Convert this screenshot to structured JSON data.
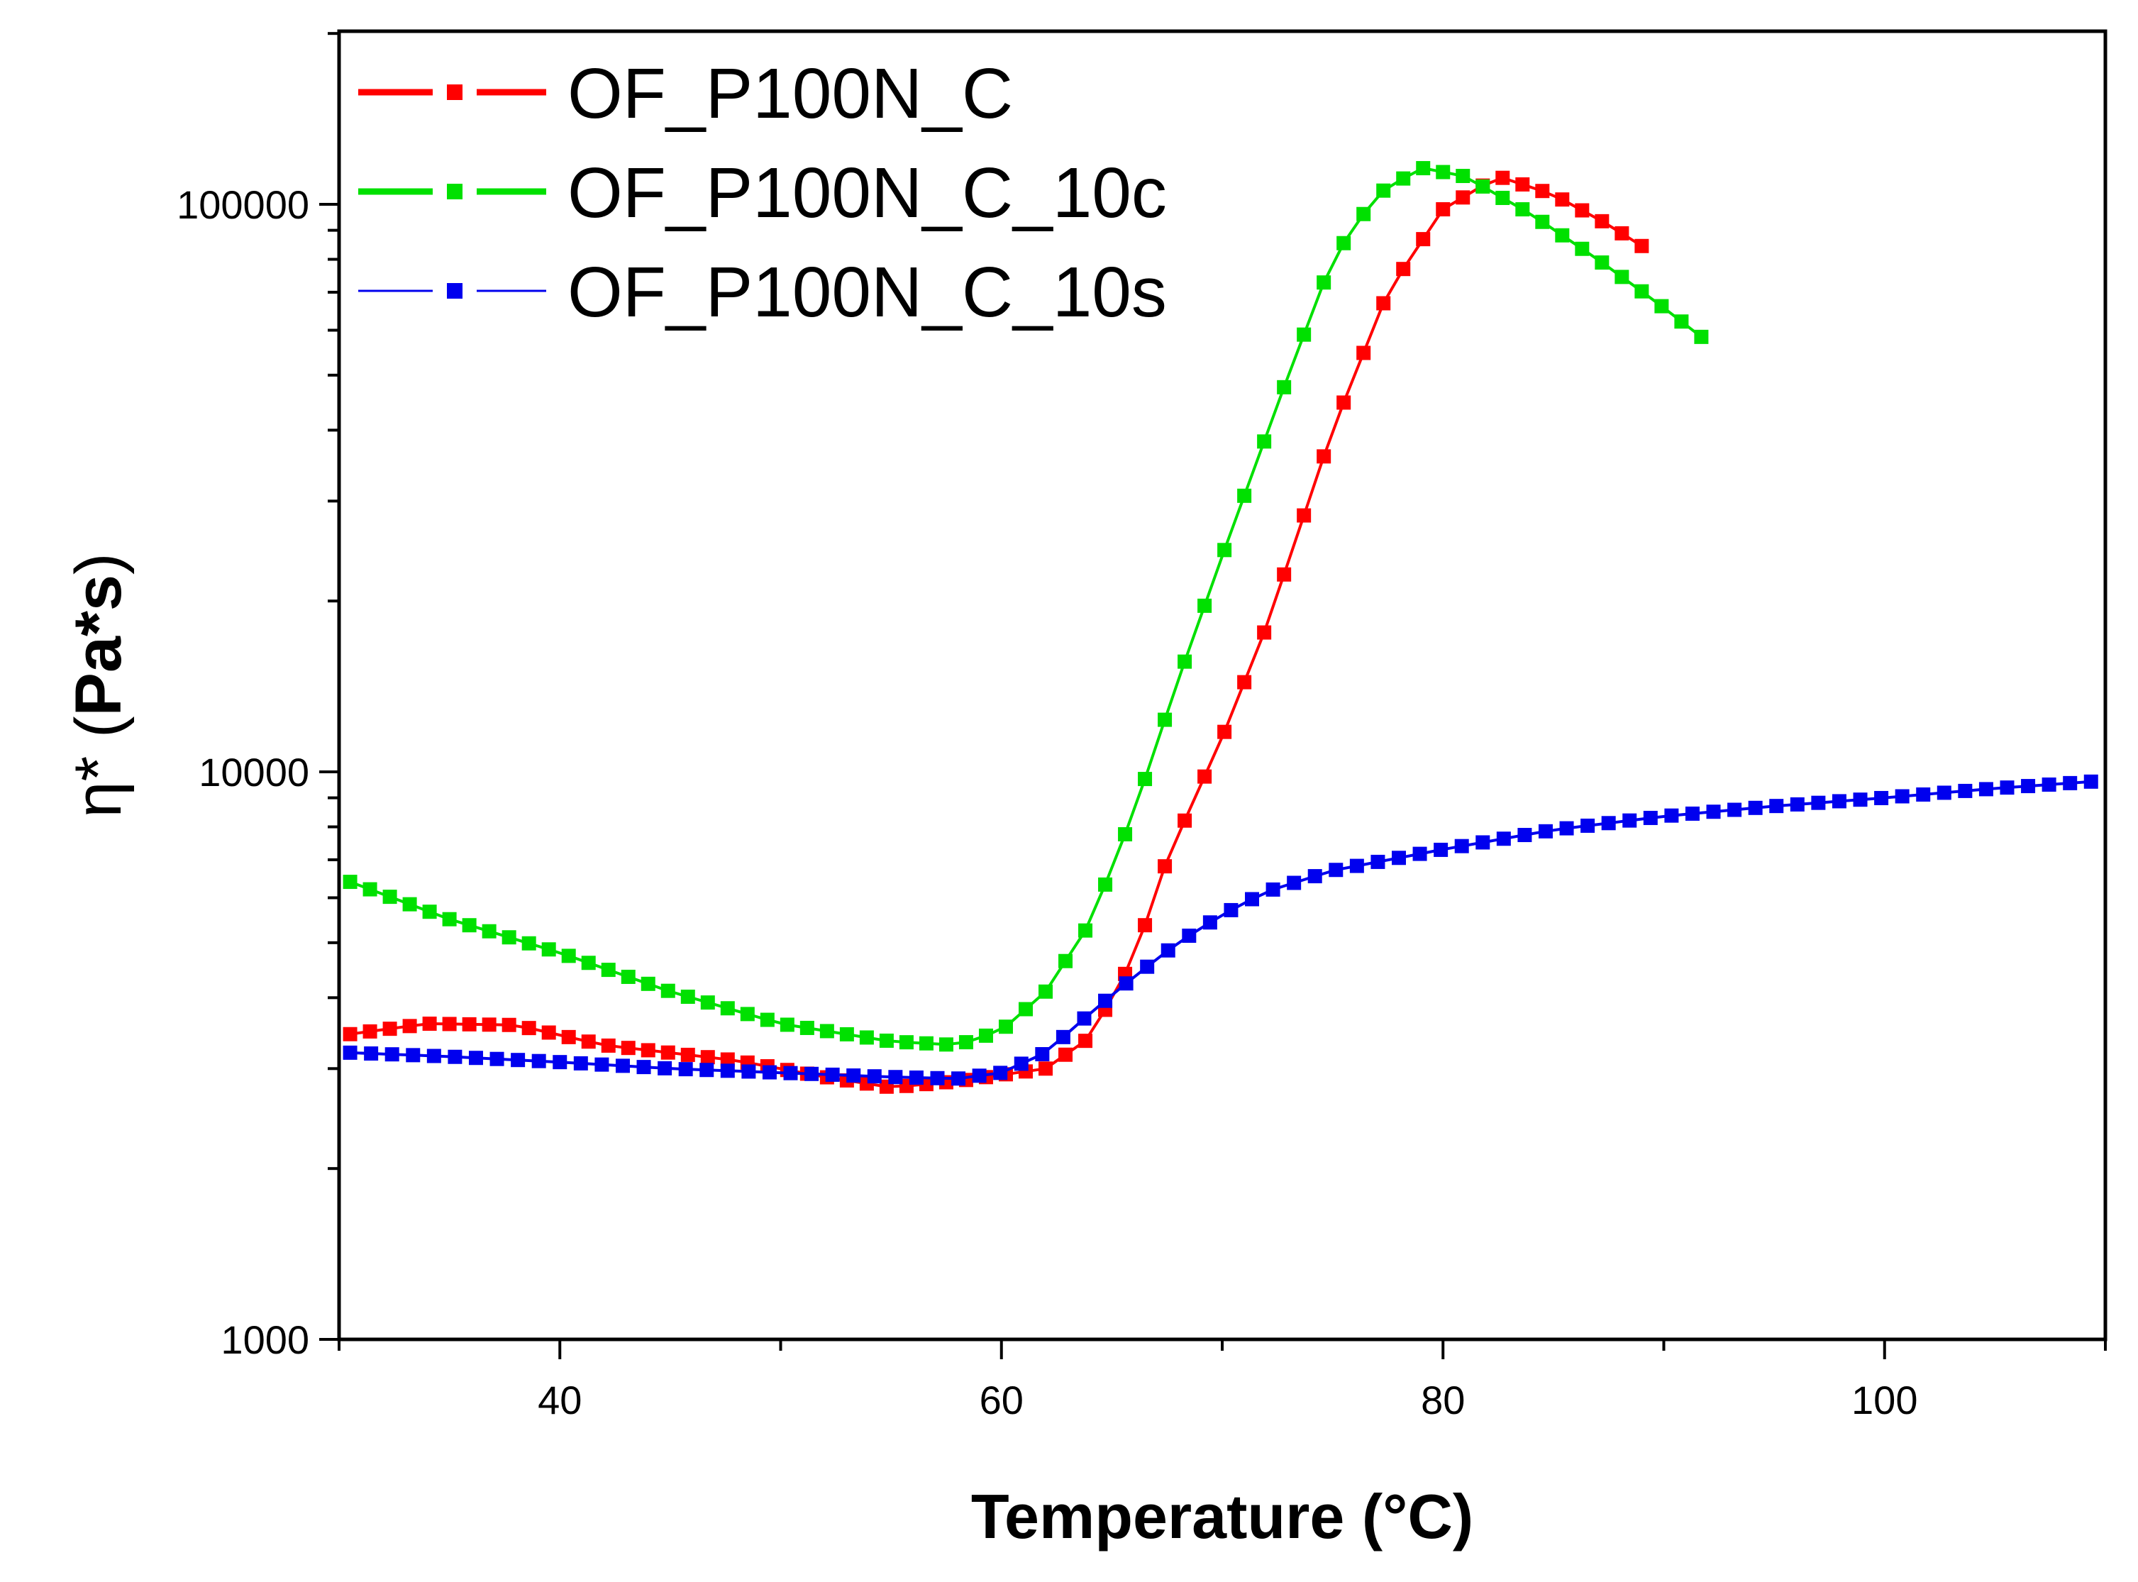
{
  "chart_data": {
    "type": "scatter",
    "title": "",
    "xlabel": "Temperature (°C)",
    "ylabel": {
      "prefix": "η* (",
      "unit": "Pa*s",
      "suffix": ")"
    },
    "x_scale": "linear",
    "y_scale": "log",
    "xlim": [
      30,
      110
    ],
    "ylim": [
      1000,
      200000
    ],
    "x_ticks": [
      40,
      60,
      80,
      100
    ],
    "x_tick_labels": [
      "40",
      "60",
      "80",
      "100"
    ],
    "x_minor_ticks": [
      30,
      50,
      70,
      90,
      110
    ],
    "y_ticks": [
      1000,
      10000,
      100000
    ],
    "y_tick_labels": [
      "1000",
      "10000",
      "100000"
    ],
    "grid": false,
    "legend_position": "top-left",
    "series": [
      {
        "name": "OF_P100N_C",
        "color": "#ff0000",
        "x_start": 30.5,
        "x_step": 0.9,
        "knots": [
          [
            30.5,
            3450
          ],
          [
            34,
            3600
          ],
          [
            38,
            3580
          ],
          [
            42,
            3300
          ],
          [
            48,
            3100
          ],
          [
            52,
            2900
          ],
          [
            55,
            2780
          ],
          [
            58,
            2850
          ],
          [
            62,
            3000
          ],
          [
            64,
            3400
          ],
          [
            66,
            4700
          ],
          [
            67.5,
            7000
          ],
          [
            70,
            11500
          ],
          [
            72,
            18000
          ],
          [
            75,
            40000
          ],
          [
            77.5,
            70000
          ],
          [
            80,
            98000
          ],
          [
            82.5,
            112000
          ],
          [
            85,
            104000
          ],
          [
            87.5,
            92000
          ],
          [
            89.3,
            83000
          ]
        ]
      },
      {
        "name": "OF_P100N_C_10c",
        "color": "#00e000",
        "x_start": 30.5,
        "x_step": 0.9,
        "knots": [
          [
            30.5,
            6400
          ],
          [
            35,
            5500
          ],
          [
            40,
            4800
          ],
          [
            45,
            4100
          ],
          [
            50,
            3600
          ],
          [
            55,
            3350
          ],
          [
            58,
            3300
          ],
          [
            60,
            3500
          ],
          [
            62,
            4100
          ],
          [
            64,
            5400
          ],
          [
            66,
            8500
          ],
          [
            68,
            14500
          ],
          [
            70,
            24000
          ],
          [
            73,
            50000
          ],
          [
            75,
            80000
          ],
          [
            77,
            104000
          ],
          [
            79,
            116000
          ],
          [
            81,
            112000
          ],
          [
            84,
            96000
          ],
          [
            87,
            80000
          ],
          [
            89.5,
            68000
          ],
          [
            91.8,
            58000
          ]
        ]
      },
      {
        "name": "OF_P100N_C_10s",
        "color": "#0000ee",
        "x_start": 30.5,
        "x_step": 0.95,
        "knots": [
          [
            30.5,
            3200
          ],
          [
            35,
            3150
          ],
          [
            40,
            3080
          ],
          [
            45,
            3000
          ],
          [
            50,
            2950
          ],
          [
            55,
            2900
          ],
          [
            58,
            2880
          ],
          [
            60,
            2950
          ],
          [
            62,
            3200
          ],
          [
            64,
            3750
          ],
          [
            66,
            4350
          ],
          [
            68,
            5000
          ],
          [
            70,
            5600
          ],
          [
            72,
            6150
          ],
          [
            75,
            6700
          ],
          [
            80,
            7300
          ],
          [
            85,
            7900
          ],
          [
            90,
            8350
          ],
          [
            95,
            8700
          ],
          [
            100,
            9000
          ],
          [
            105,
            9350
          ],
          [
            110,
            9650
          ]
        ]
      }
    ]
  }
}
